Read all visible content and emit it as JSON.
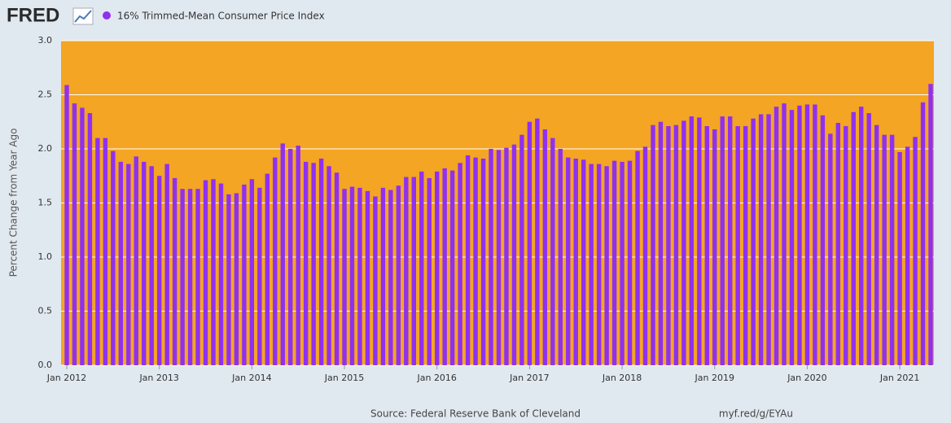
{
  "logo": "FRED",
  "chart_data": {
    "type": "bar",
    "ylabel": "Percent Change from Year Ago",
    "source": "Source: Federal Reserve Bank of Cleveland",
    "link": "myf.red/g/EYAu",
    "plot_background": "#f4a523",
    "grid": true,
    "x": [
      "2012-01",
      "2012-02",
      "2012-03",
      "2012-04",
      "2012-05",
      "2012-06",
      "2012-07",
      "2012-08",
      "2012-09",
      "2012-10",
      "2012-11",
      "2012-12",
      "2013-01",
      "2013-02",
      "2013-03",
      "2013-04",
      "2013-05",
      "2013-06",
      "2013-07",
      "2013-08",
      "2013-09",
      "2013-10",
      "2013-11",
      "2013-12",
      "2014-01",
      "2014-02",
      "2014-03",
      "2014-04",
      "2014-05",
      "2014-06",
      "2014-07",
      "2014-08",
      "2014-09",
      "2014-10",
      "2014-11",
      "2014-12",
      "2015-01",
      "2015-02",
      "2015-03",
      "2015-04",
      "2015-05",
      "2015-06",
      "2015-07",
      "2015-08",
      "2015-09",
      "2015-10",
      "2015-11",
      "2015-12",
      "2016-01",
      "2016-02",
      "2016-03",
      "2016-04",
      "2016-05",
      "2016-06",
      "2016-07",
      "2016-08",
      "2016-09",
      "2016-10",
      "2016-11",
      "2016-12",
      "2017-01",
      "2017-02",
      "2017-03",
      "2017-04",
      "2017-05",
      "2017-06",
      "2017-07",
      "2017-08",
      "2017-09",
      "2017-10",
      "2017-11",
      "2017-12",
      "2018-01",
      "2018-02",
      "2018-03",
      "2018-04",
      "2018-05",
      "2018-06",
      "2018-07",
      "2018-08",
      "2018-09",
      "2018-10",
      "2018-11",
      "2018-12",
      "2019-01",
      "2019-02",
      "2019-03",
      "2019-04",
      "2019-05",
      "2019-06",
      "2019-07",
      "2019-08",
      "2019-09",
      "2019-10",
      "2019-11",
      "2019-12",
      "2020-01",
      "2020-02",
      "2020-03",
      "2020-04",
      "2020-05",
      "2020-06",
      "2020-07",
      "2020-08",
      "2020-09",
      "2020-10",
      "2020-11",
      "2020-12",
      "2021-01",
      "2021-02",
      "2021-03",
      "2021-04",
      "2021-05"
    ],
    "series": [
      {
        "name": "16% Trimmed-Mean Consumer Price Index",
        "color": "#9030f0",
        "values": [
          2.59,
          2.42,
          2.38,
          2.33,
          2.1,
          2.1,
          1.98,
          1.88,
          1.86,
          1.93,
          1.88,
          1.84,
          1.75,
          1.86,
          1.73,
          1.63,
          1.63,
          1.63,
          1.71,
          1.72,
          1.68,
          1.58,
          1.59,
          1.67,
          1.72,
          1.64,
          1.77,
          1.92,
          2.05,
          2.0,
          2.03,
          1.88,
          1.87,
          1.91,
          1.84,
          1.78,
          1.63,
          1.65,
          1.64,
          1.61,
          1.56,
          1.64,
          1.62,
          1.66,
          1.74,
          1.74,
          1.79,
          1.73,
          1.79,
          1.82,
          1.8,
          1.87,
          1.94,
          1.92,
          1.91,
          2.0,
          1.99,
          2.01,
          2.04,
          2.13,
          2.25,
          2.28,
          2.18,
          2.1,
          2.0,
          1.92,
          1.91,
          1.9,
          1.86,
          1.86,
          1.84,
          1.89,
          1.88,
          1.89,
          1.98,
          2.02,
          2.22,
          2.25,
          2.21,
          2.22,
          2.26,
          2.3,
          2.29,
          2.21,
          2.18,
          2.3,
          2.3,
          2.21,
          2.21,
          2.28,
          2.32,
          2.32,
          2.39,
          2.42,
          2.36,
          2.4,
          2.41,
          2.41,
          2.31,
          2.14,
          2.24,
          2.21,
          2.34,
          2.39,
          2.33,
          2.22,
          2.13,
          2.13,
          1.97,
          2.02,
          2.11,
          2.43,
          2.6
        ]
      }
    ],
    "ylim": [
      0,
      3
    ],
    "yticks": [
      {
        "value": 0,
        "label": "0.0"
      },
      {
        "value": 0.5,
        "label": "0.5"
      },
      {
        "value": 1,
        "label": "1.0"
      },
      {
        "value": 1.5,
        "label": "1.5"
      },
      {
        "value": 2,
        "label": "2.0"
      },
      {
        "value": 2.5,
        "label": "2.5"
      },
      {
        "value": 3,
        "label": "3.0"
      }
    ],
    "xticks": [
      {
        "value": "2012-01",
        "label": "Jan 2012"
      },
      {
        "value": "2013-01",
        "label": "Jan 2013"
      },
      {
        "value": "2014-01",
        "label": "Jan 2014"
      },
      {
        "value": "2015-01",
        "label": "Jan 2015"
      },
      {
        "value": "2016-01",
        "label": "Jan 2016"
      },
      {
        "value": "2017-01",
        "label": "Jan 2017"
      },
      {
        "value": "2018-01",
        "label": "Jan 2018"
      },
      {
        "value": "2019-01",
        "label": "Jan 2019"
      },
      {
        "value": "2020-01",
        "label": "Jan 2020"
      },
      {
        "value": "2021-01",
        "label": "Jan 2021"
      }
    ]
  }
}
